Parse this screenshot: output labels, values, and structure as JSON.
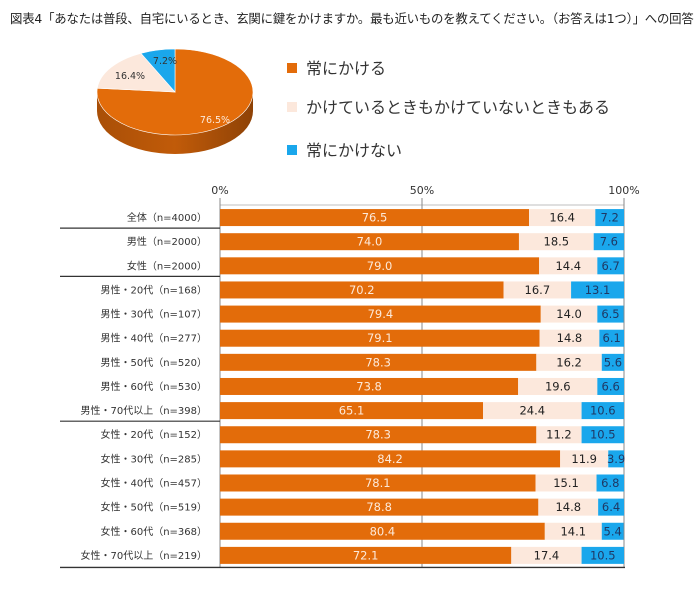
{
  "title": "図表4「あなたは普段、自宅にいるとき、玄関に鍵をかけますか。最も近いものを教えてください。（お答えは1つ）」への回答",
  "legend": [
    {
      "label": "常にかける",
      "color": "#e36c0a"
    },
    {
      "label": "かけているときもかけていないときもある",
      "color": "#fce8dc"
    },
    {
      "label": "常にかけない",
      "color": "#1aa7ec"
    }
  ],
  "chart_data": [
    {
      "type": "pie",
      "title": "",
      "slices": [
        {
          "name": "常にかける",
          "value": 76.5,
          "label": "76.5%",
          "color": "#e36c0a"
        },
        {
          "name": "かけているときもかけていないときもある",
          "value": 16.4,
          "label": "16.4%",
          "color": "#fce8dc"
        },
        {
          "name": "常にかけない",
          "value": 7.2,
          "label": "7.2%",
          "color": "#1aa7ec"
        }
      ]
    },
    {
      "type": "bar",
      "orientation": "horizontal-stacked-100",
      "xlim": [
        0,
        100
      ],
      "xticks": [
        "0%",
        "50%",
        "100%"
      ],
      "grid": "vertical line at 50%",
      "categories": [
        "全体（n=4000）",
        "男性（n=2000）",
        "女性（n=2000）",
        "男性・20代（n=168）",
        "男性・30代（n=107）",
        "男性・40代（n=277）",
        "男性・50代（n=520）",
        "男性・60代（n=530）",
        "男性・70代以上（n=398）",
        "女性・20代（n=152）",
        "女性・30代（n=285）",
        "女性・40代（n=457）",
        "女性・50代（n=519）",
        "女性・60代（n=368）",
        "女性・70代以上（n=219）"
      ],
      "group_breaks_after": [
        0,
        2,
        8
      ],
      "series": [
        {
          "name": "常にかける",
          "color": "#e36c0a",
          "values": [
            76.5,
            74.0,
            79.0,
            70.2,
            79.4,
            79.1,
            78.3,
            73.8,
            65.1,
            78.3,
            84.2,
            78.1,
            78.8,
            80.4,
            72.1
          ],
          "labels": [
            "76.5",
            "74.0",
            "79.0",
            "70.2",
            "79.4",
            "79.1",
            "78.3",
            "73.8",
            "65.1",
            "78.3",
            "84.2",
            "78.1",
            "78.8",
            "80.4",
            "72.1"
          ]
        },
        {
          "name": "かけているときもかけていないときもある",
          "color": "#fce8dc",
          "values": [
            16.4,
            18.5,
            14.4,
            16.7,
            14.0,
            14.8,
            16.2,
            19.6,
            24.4,
            11.2,
            11.9,
            15.1,
            14.8,
            14.1,
            17.4
          ],
          "labels": [
            "16.4",
            "18.5",
            "14.4",
            "16.7",
            "14.0",
            "14.8",
            "16.2",
            "19.6",
            "24.4",
            "11.2",
            "11.9",
            "15.1",
            "14.8",
            "14.1",
            "17.4"
          ]
        },
        {
          "name": "常にかけない",
          "color": "#1aa7ec",
          "values": [
            7.2,
            7.6,
            6.7,
            13.1,
            6.5,
            6.1,
            5.6,
            6.6,
            10.6,
            10.5,
            3.9,
            6.8,
            6.4,
            5.4,
            10.5
          ],
          "labels": [
            "7.2",
            "7.6",
            "6.7",
            "13.1",
            "6.5",
            "6.1",
            "5.6",
            "6.6",
            "10.6",
            "10.5",
            "3.9",
            "6.8",
            "6.4",
            "5.4",
            "10.5"
          ]
        }
      ]
    }
  ]
}
